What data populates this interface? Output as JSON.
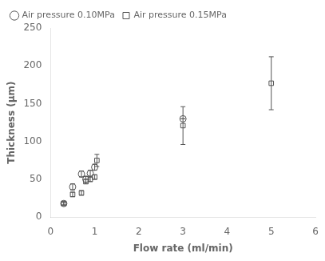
{
  "chart_data": {
    "type": "scatter",
    "x_label": "Flow rate (ml/min)",
    "y_label": "Thickness (μm)",
    "series": [
      {
        "name": "Air pressure 0.10MPa",
        "color": "#555555",
        "marker": "circle",
        "x": [
          0.3,
          0.5,
          0.7,
          0.8,
          0.9,
          1.0,
          3.0
        ],
        "values": [
          18,
          40,
          57,
          50,
          58,
          66,
          130
        ],
        "yerr": [
          2,
          4,
          4,
          4,
          4,
          4,
          0
        ]
      },
      {
        "name": "Air pressure 0.15MPa",
        "color": "#555555",
        "marker": "square",
        "x": [
          0.3,
          0.5,
          0.7,
          0.8,
          0.9,
          1.0,
          1.05,
          3.0,
          5.0
        ],
        "values": [
          18,
          30,
          32,
          47,
          50,
          53,
          75,
          121,
          177
        ],
        "yerr": [
          2,
          3,
          3,
          3,
          3,
          3,
          8,
          25,
          35
        ]
      }
    ],
    "xlim": [
      0,
      6
    ],
    "xticks": [
      0,
      1,
      2,
      3,
      4,
      5,
      6
    ],
    "ylim": [
      0,
      250
    ],
    "yticks": [
      0,
      50,
      100,
      150,
      200,
      250
    ],
    "grid": false,
    "legend": "upper left"
  }
}
